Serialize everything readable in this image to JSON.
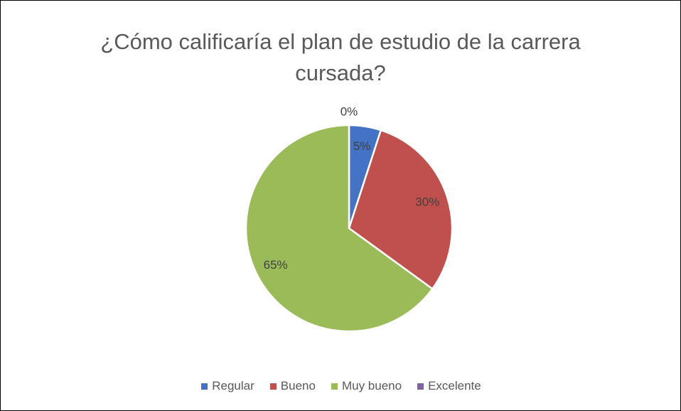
{
  "chart_data": {
    "type": "pie",
    "title": "¿Cómo calificaría el plan de estudio de la carrera cursada?",
    "categories": [
      "Regular",
      "Bueno",
      "Muy bueno",
      "Excelente"
    ],
    "values": [
      5,
      30,
      65,
      0
    ],
    "value_labels": [
      "5%",
      "30%",
      "65%",
      "0%"
    ],
    "colors": [
      "#4472c4",
      "#c0504d",
      "#9bbb59",
      "#8064a2"
    ],
    "legend": "bottom"
  }
}
